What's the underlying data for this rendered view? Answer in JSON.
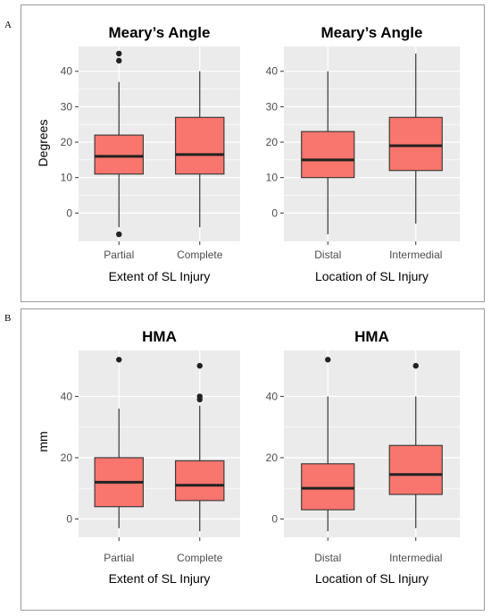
{
  "panels": [
    {
      "letter": "A",
      "ylabel": "Degrees"
    },
    {
      "letter": "B",
      "ylabel": "mm"
    }
  ],
  "colors": {
    "box_fill": "#f8766d",
    "panel_bg": "#ebebeb",
    "grid": "#ffffff",
    "median": "#222222",
    "outlier": "#222222"
  },
  "chart_data": [
    {
      "type": "box",
      "title": "Meary’s Angle",
      "xlabel": "Extent of SL Injury",
      "ylabel": "Degrees",
      "ylim": [
        -8,
        47
      ],
      "yticks": [
        0,
        10,
        20,
        30,
        40
      ],
      "grid": true,
      "categories": [
        "Partial",
        "Complete"
      ],
      "boxes": [
        {
          "min": -4,
          "q1": 11,
          "median": 16,
          "q3": 22,
          "max": 37,
          "outliers": [
            -6,
            43,
            45
          ]
        },
        {
          "min": -4,
          "q1": 11,
          "median": 16.5,
          "q3": 27,
          "max": 40,
          "outliers": []
        }
      ]
    },
    {
      "type": "box",
      "title": "Meary’s Angle",
      "xlabel": "Location of SL Injury",
      "ylabel": "",
      "ylim": [
        -8,
        47
      ],
      "yticks": [
        0,
        10,
        20,
        30,
        40
      ],
      "grid": true,
      "categories": [
        "Distal",
        "Intermedial"
      ],
      "boxes": [
        {
          "min": -6,
          "q1": 10,
          "median": 15,
          "q3": 23,
          "max": 40,
          "outliers": []
        },
        {
          "min": -3,
          "q1": 12,
          "median": 19,
          "q3": 27,
          "max": 45,
          "outliers": []
        }
      ]
    },
    {
      "type": "box",
      "title": "HMA",
      "xlabel": "Extent of SL Injury",
      "ylabel": "mm",
      "ylim": [
        -6,
        55
      ],
      "yticks": [
        0,
        20,
        40
      ],
      "grid": true,
      "categories": [
        "Partial",
        "Complete"
      ],
      "boxes": [
        {
          "min": -3,
          "q1": 4,
          "median": 12,
          "q3": 20,
          "max": 36,
          "outliers": [
            52
          ]
        },
        {
          "min": -4,
          "q1": 6,
          "median": 11,
          "q3": 19,
          "max": 37,
          "outliers": [
            39,
            40,
            50
          ]
        }
      ]
    },
    {
      "type": "box",
      "title": "HMA",
      "xlabel": "Location of SL Injury",
      "ylabel": "",
      "ylim": [
        -6,
        55
      ],
      "yticks": [
        0,
        20,
        40
      ],
      "grid": true,
      "categories": [
        "Distal",
        "Intermedial"
      ],
      "boxes": [
        {
          "min": -4,
          "q1": 3,
          "median": 10,
          "q3": 18,
          "max": 40,
          "outliers": [
            52
          ]
        },
        {
          "min": -3,
          "q1": 8,
          "median": 14.5,
          "q3": 24,
          "max": 40,
          "outliers": [
            50
          ]
        }
      ]
    }
  ]
}
